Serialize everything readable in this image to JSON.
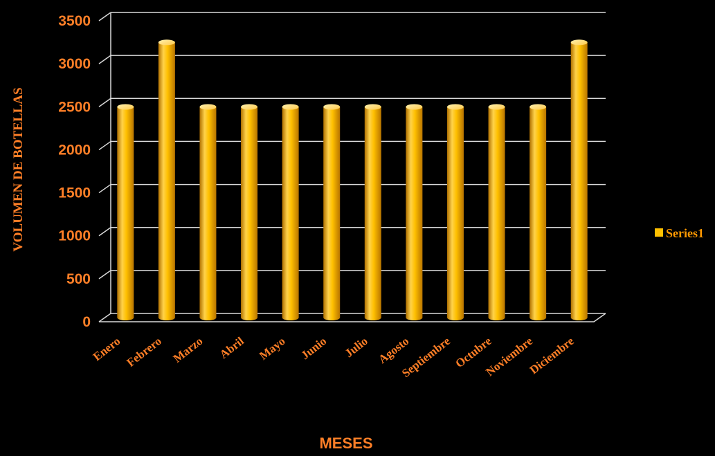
{
  "chart_data": {
    "type": "bar",
    "title": "",
    "xlabel": "MESES",
    "ylabel": "VOLUMEN DE BOTELLAS",
    "categories": [
      "Enero",
      "Febrero",
      "Marzo",
      "Abril",
      "Mayo",
      "Junio",
      "Julio",
      "Agosto",
      "Septiembre",
      "Octubre",
      "Noviembre",
      "Diciembre"
    ],
    "series": [
      {
        "name": "Series1",
        "values": [
          2450,
          3200,
          2450,
          2450,
          2450,
          2450,
          2450,
          2450,
          2450,
          2450,
          2450,
          3200
        ]
      }
    ],
    "ylim": [
      0,
      3500
    ],
    "yticks": [
      0,
      500,
      1000,
      1500,
      2000,
      2500,
      3000,
      3500
    ],
    "grid": true,
    "legend_position": "right",
    "style": "3d-cylinder"
  },
  "colors": {
    "background": "#000000",
    "text": "#FF7F27",
    "legend_text": "#FF9900",
    "bar_fill": "#FFC000",
    "bar_light": "#FFE066",
    "bar_dark": "#C07800",
    "grid": "#D9D9D9"
  }
}
